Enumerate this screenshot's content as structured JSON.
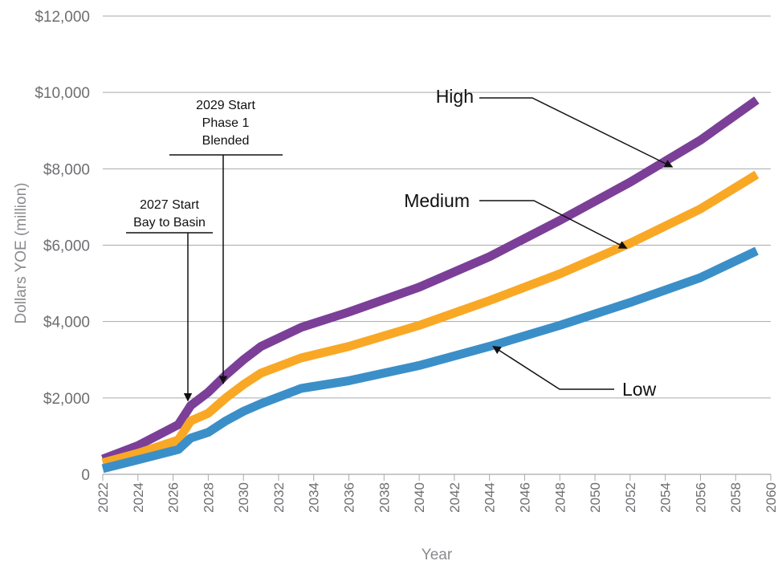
{
  "chart_data": {
    "type": "line",
    "xlabel": "Year",
    "ylabel": "Dollars YOE (million)",
    "xlim": [
      2022,
      2060
    ],
    "ylim": [
      0,
      12000
    ],
    "x_ticks": [
      "2022",
      "2024",
      "2026",
      "2028",
      "2030",
      "2032",
      "2034",
      "2036",
      "2038",
      "2040",
      "2042",
      "2044",
      "2046",
      "2048",
      "2050",
      "2052",
      "2054",
      "2056",
      "2058",
      "2060"
    ],
    "y_ticks": [
      {
        "value": 0,
        "label": "0"
      },
      {
        "value": 2000,
        "label": "$2,000"
      },
      {
        "value": 4000,
        "label": "$4,000"
      },
      {
        "value": 6000,
        "label": "$6,000"
      },
      {
        "value": 8000,
        "label": "$8,000"
      },
      {
        "value": 10000,
        "label": "$10,000"
      },
      {
        "value": 12000,
        "label": "$12,000"
      }
    ],
    "grid": "horizontal",
    "series": [
      {
        "name": "High",
        "color": "#7b3f98",
        "points": [
          [
            2022,
            400
          ],
          [
            2024,
            750
          ],
          [
            2026.3,
            1300
          ],
          [
            2027,
            1800
          ],
          [
            2028,
            2150
          ],
          [
            2029,
            2600
          ],
          [
            2030,
            3000
          ],
          [
            2031,
            3350
          ],
          [
            2033.3,
            3850
          ],
          [
            2036,
            4250
          ],
          [
            2040,
            4900
          ],
          [
            2044,
            5700
          ],
          [
            2048,
            6650
          ],
          [
            2052,
            7650
          ],
          [
            2056,
            8750
          ],
          [
            2059.2,
            9800
          ]
        ]
      },
      {
        "name": "Medium",
        "color": "#f9a825",
        "points": [
          [
            2022,
            300
          ],
          [
            2024,
            550
          ],
          [
            2026.3,
            900
          ],
          [
            2027,
            1400
          ],
          [
            2028,
            1600
          ],
          [
            2029,
            2000
          ],
          [
            2030,
            2350
          ],
          [
            2031,
            2650
          ],
          [
            2033.3,
            3050
          ],
          [
            2036,
            3350
          ],
          [
            2040,
            3900
          ],
          [
            2044,
            4550
          ],
          [
            2048,
            5250
          ],
          [
            2052,
            6050
          ],
          [
            2056,
            6950
          ],
          [
            2059.2,
            7850
          ]
        ]
      },
      {
        "name": "Low",
        "color": "#3b8fc8",
        "points": [
          [
            2022,
            150
          ],
          [
            2024,
            380
          ],
          [
            2026.3,
            650
          ],
          [
            2027,
            950
          ],
          [
            2028,
            1100
          ],
          [
            2029,
            1400
          ],
          [
            2030,
            1650
          ],
          [
            2031,
            1850
          ],
          [
            2033.3,
            2250
          ],
          [
            2036,
            2450
          ],
          [
            2040,
            2850
          ],
          [
            2044,
            3350
          ],
          [
            2048,
            3900
          ],
          [
            2052,
            4500
          ],
          [
            2056,
            5150
          ],
          [
            2059.2,
            5850
          ]
        ]
      }
    ],
    "series_labels": [
      {
        "series": "High",
        "text": "High",
        "anchor_x": 2054.4,
        "anchor_y": 8050
      },
      {
        "series": "Medium",
        "text": "Medium",
        "anchor_x": 2051.8,
        "anchor_y": 5920
      },
      {
        "series": "Low",
        "text": "Low",
        "anchor_x": 2044.2,
        "anchor_y": 3350
      }
    ],
    "annotations": [
      {
        "lines": [
          "2027 Start",
          "Bay to Basin"
        ],
        "x": 2027,
        "y": 1800
      },
      {
        "lines": [
          "2029 Start",
          "Phase 1",
          "Blended"
        ],
        "x": 2028.7,
        "y": 2250
      }
    ]
  }
}
